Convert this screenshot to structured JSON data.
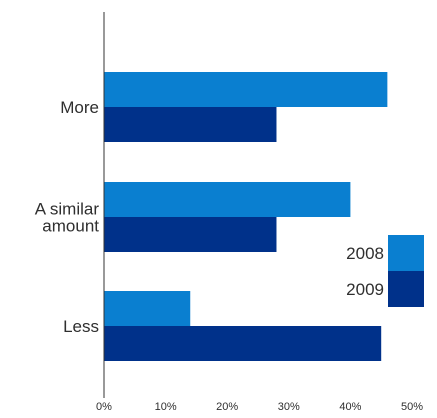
{
  "chart_data": {
    "type": "bar",
    "orientation": "horizontal",
    "categories": [
      [
        "More"
      ],
      [
        "A similar",
        "amount"
      ],
      [
        "Less"
      ]
    ],
    "series": [
      {
        "name": "2008",
        "values": [
          46,
          40,
          14
        ],
        "color": "#0a7fd0"
      },
      {
        "name": "2009",
        "values": [
          28,
          28,
          45
        ],
        "color": "#00318a"
      }
    ],
    "xlim": [
      0,
      50
    ],
    "x_ticks": [
      0,
      10,
      20,
      30,
      40,
      50
    ],
    "x_tick_labels": [
      "0%",
      "10%",
      "20%",
      "30%",
      "40%",
      "50%"
    ],
    "xlabel": "",
    "ylabel": "",
    "title": "",
    "grid": false,
    "legend": {
      "position": "right"
    }
  },
  "colors": {
    "axis": "#333333",
    "text": "#2f2f2f"
  }
}
